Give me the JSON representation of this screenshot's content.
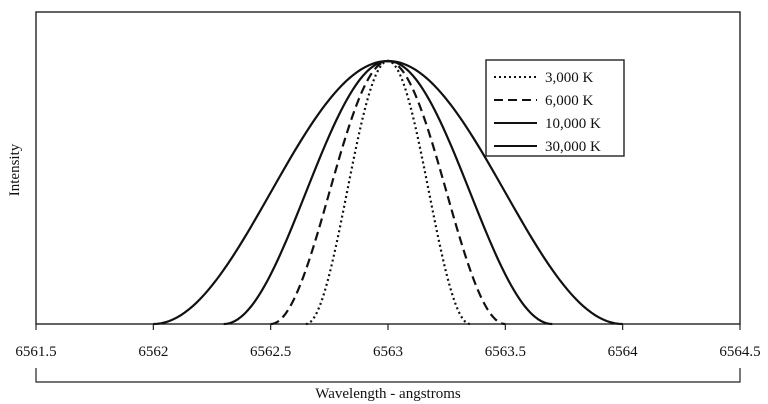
{
  "chart_data": {
    "type": "line",
    "title": "",
    "xlabel": "Wavelength - angstroms",
    "ylabel": "Intensity",
    "xlim": [
      6561.5,
      6564.5
    ],
    "ylim": [
      0,
      1
    ],
    "x_ticks": [
      "6561.5",
      "6562",
      "6562.5",
      "6563",
      "6563.5",
      "6564",
      "6564.5"
    ],
    "grid": false,
    "legend_position": "top-right",
    "series": [
      {
        "name": "3,000 K",
        "style": "dotted",
        "center": 6563.0,
        "halfwidth": 0.35,
        "peak": 1
      },
      {
        "name": "6,000 K",
        "style": "dashed",
        "center": 6563.0,
        "halfwidth": 0.5,
        "peak": 1
      },
      {
        "name": "10,000 K",
        "style": "solid",
        "center": 6563.0,
        "halfwidth": 0.7,
        "peak": 1
      },
      {
        "name": "30,000 K",
        "style": "solid",
        "center": 6563.0,
        "halfwidth": 1.0,
        "peak": 1
      }
    ]
  }
}
